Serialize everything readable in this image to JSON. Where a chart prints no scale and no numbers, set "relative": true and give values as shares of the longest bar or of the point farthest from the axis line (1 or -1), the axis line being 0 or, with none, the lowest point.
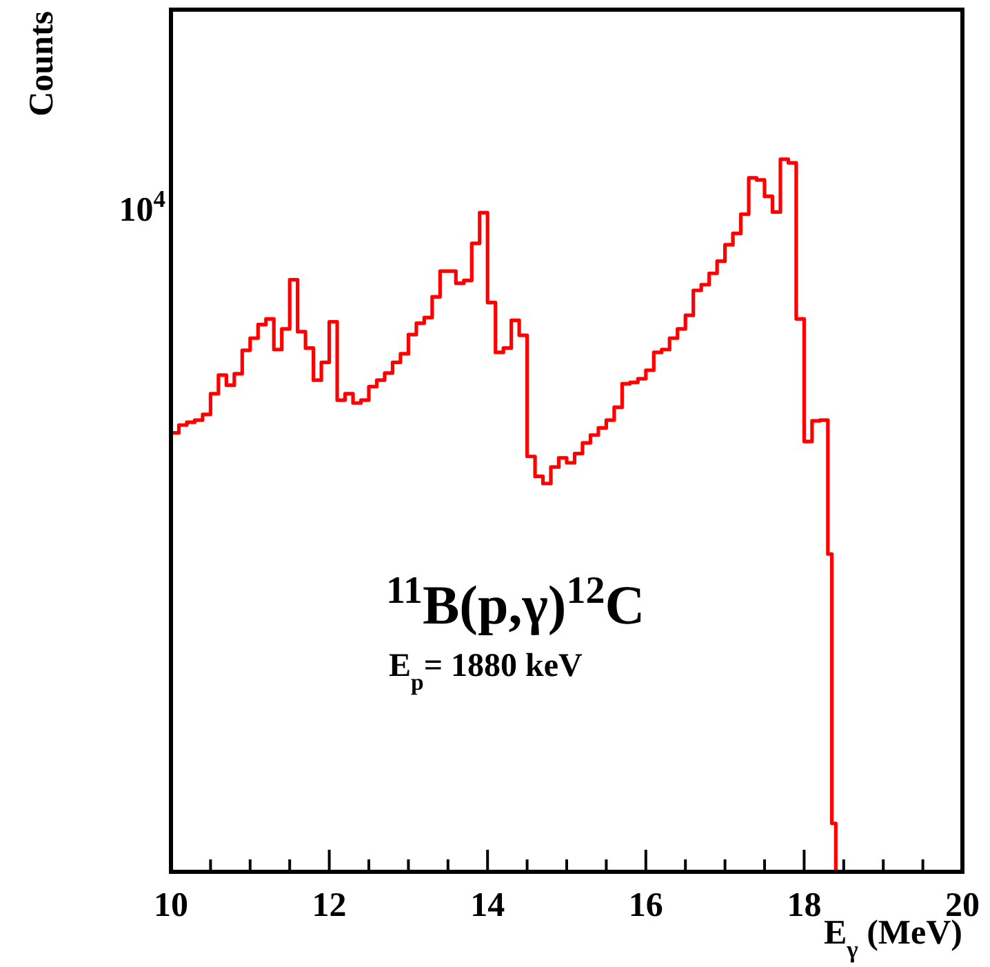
{
  "chart_data": {
    "type": "step",
    "xlabel": "E$_{γ}$ (MeV)",
    "ylabel": "Counts",
    "annotations": [
      "$^{11}$B(p,γ)$^{12}$C",
      "E$_{p}$= 1880 keV",
      "10$^{4}$"
    ],
    "relative": true,
    "xlim": [
      10,
      20
    ],
    "xticks": [
      10,
      {
        "value": 10.5,
        "label": null
      },
      {
        "value": 11,
        "label": null
      },
      {
        "value": 11.5,
        "label": null
      },
      12,
      {
        "value": 12.5,
        "label": null
      },
      {
        "value": 13,
        "label": null
      },
      {
        "value": 13.5,
        "label": null
      },
      14,
      {
        "value": 14.5,
        "label": null
      },
      {
        "value": 15,
        "label": null
      },
      {
        "value": 15.5,
        "label": null
      },
      16,
      {
        "value": 16.5,
        "label": null
      },
      {
        "value": 17,
        "label": null
      },
      {
        "value": 17.5,
        "label": null
      },
      18,
      {
        "value": 18.5,
        "label": null
      },
      {
        "value": 19,
        "label": null
      },
      {
        "value": 19.5,
        "label": null
      },
      20
    ],
    "series": [
      {
        "color": "#ff0000",
        "x": [
          10,
          10.1,
          10.2,
          10.3,
          10.4,
          10.5,
          10.6,
          10.7,
          10.8,
          10.9,
          11,
          11.1,
          11.2,
          11.3,
          11.4,
          11.5,
          11.6,
          11.7,
          11.8,
          11.9,
          12,
          12.1,
          12.2,
          12.3,
          12.4,
          12.5,
          12.6,
          12.7,
          12.8,
          12.9,
          13,
          13.1,
          13.2,
          13.3,
          13.4,
          13.5,
          13.6,
          13.7,
          13.8,
          13.9,
          14,
          14.1,
          14.2,
          14.3,
          14.4,
          14.5,
          14.6,
          14.7,
          14.8,
          14.9,
          15,
          15.1,
          15.2,
          15.3,
          15.4,
          15.5,
          15.6,
          15.7,
          15.8,
          15.9,
          16,
          16.1,
          16.2,
          16.3,
          16.4,
          16.5,
          16.6,
          16.7,
          16.8,
          16.9,
          17,
          17.1,
          17.2,
          17.3,
          17.4,
          17.5,
          17.6,
          17.7,
          17.8,
          17.9,
          18,
          18.1,
          18.2,
          18.3,
          18.35,
          18.4
        ],
        "values": [
          0.616,
          0.627,
          0.631,
          0.634,
          0.642,
          0.671,
          0.697,
          0.683,
          0.699,
          0.732,
          0.749,
          0.768,
          0.776,
          0.733,
          0.762,
          0.831,
          0.758,
          0.735,
          0.69,
          0.715,
          0.772,
          0.662,
          0.671,
          0.658,
          0.662,
          0.681,
          0.69,
          0.7,
          0.715,
          0.727,
          0.754,
          0.77,
          0.778,
          0.807,
          0.843,
          0.843,
          0.826,
          0.83,
          0.882,
          0.925,
          0.799,
          0.729,
          0.735,
          0.774,
          0.753,
          0.583,
          0.555,
          0.545,
          0.568,
          0.581,
          0.574,
          0.587,
          0.602,
          0.613,
          0.623,
          0.634,
          0.652,
          0.685,
          0.687,
          0.692,
          0.704,
          0.729,
          0.733,
          0.749,
          0.762,
          0.781,
          0.816,
          0.824,
          0.84,
          0.857,
          0.88,
          0.896,
          0.923,
          0.974,
          0.971,
          0.948,
          0.926,
          1,
          0.995,
          0.776,
          0.604,
          0.633,
          0.634,
          0.446,
          0.068,
          0
        ]
      }
    ]
  }
}
